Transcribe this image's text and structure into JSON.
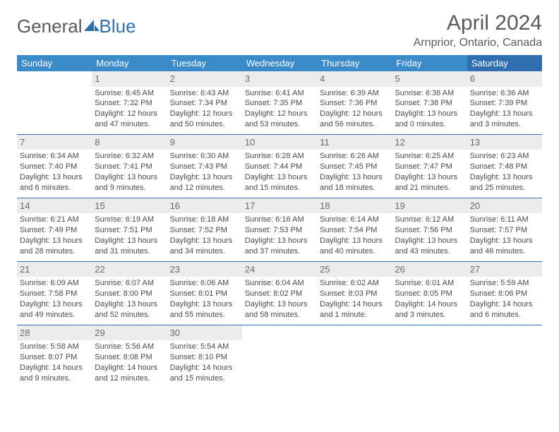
{
  "logo": {
    "word1": "General",
    "word2": "Blue"
  },
  "title": "April 2024",
  "location": "Arnprior, Ontario, Canada",
  "colors": {
    "header_bg": "#3b8bc9",
    "header_sat_bg": "#2f6fb0",
    "header_text": "#ffffff",
    "daynum_bg": "#ececec",
    "border": "#2f6fb0",
    "body_text": "#4a4a4a",
    "title_text": "#5a5a5a"
  },
  "typography": {
    "title_fontsize": 30,
    "location_fontsize": 16,
    "dayheader_fontsize": 13,
    "cell_fontsize": 11
  },
  "day_headers": [
    "Sunday",
    "Monday",
    "Tuesday",
    "Wednesday",
    "Thursday",
    "Friday",
    "Saturday"
  ],
  "weeks": [
    [
      null,
      {
        "n": "1",
        "sr": "Sunrise: 6:45 AM",
        "ss": "Sunset: 7:32 PM",
        "dl": "Daylight: 12 hours and 47 minutes."
      },
      {
        "n": "2",
        "sr": "Sunrise: 6:43 AM",
        "ss": "Sunset: 7:34 PM",
        "dl": "Daylight: 12 hours and 50 minutes."
      },
      {
        "n": "3",
        "sr": "Sunrise: 6:41 AM",
        "ss": "Sunset: 7:35 PM",
        "dl": "Daylight: 12 hours and 53 minutes."
      },
      {
        "n": "4",
        "sr": "Sunrise: 6:39 AM",
        "ss": "Sunset: 7:36 PM",
        "dl": "Daylight: 12 hours and 56 minutes."
      },
      {
        "n": "5",
        "sr": "Sunrise: 6:38 AM",
        "ss": "Sunset: 7:38 PM",
        "dl": "Daylight: 13 hours and 0 minutes."
      },
      {
        "n": "6",
        "sr": "Sunrise: 6:36 AM",
        "ss": "Sunset: 7:39 PM",
        "dl": "Daylight: 13 hours and 3 minutes."
      }
    ],
    [
      {
        "n": "7",
        "sr": "Sunrise: 6:34 AM",
        "ss": "Sunset: 7:40 PM",
        "dl": "Daylight: 13 hours and 6 minutes."
      },
      {
        "n": "8",
        "sr": "Sunrise: 6:32 AM",
        "ss": "Sunset: 7:41 PM",
        "dl": "Daylight: 13 hours and 9 minutes."
      },
      {
        "n": "9",
        "sr": "Sunrise: 6:30 AM",
        "ss": "Sunset: 7:43 PM",
        "dl": "Daylight: 13 hours and 12 minutes."
      },
      {
        "n": "10",
        "sr": "Sunrise: 6:28 AM",
        "ss": "Sunset: 7:44 PM",
        "dl": "Daylight: 13 hours and 15 minutes."
      },
      {
        "n": "11",
        "sr": "Sunrise: 6:26 AM",
        "ss": "Sunset: 7:45 PM",
        "dl": "Daylight: 13 hours and 18 minutes."
      },
      {
        "n": "12",
        "sr": "Sunrise: 6:25 AM",
        "ss": "Sunset: 7:47 PM",
        "dl": "Daylight: 13 hours and 21 minutes."
      },
      {
        "n": "13",
        "sr": "Sunrise: 6:23 AM",
        "ss": "Sunset: 7:48 PM",
        "dl": "Daylight: 13 hours and 25 minutes."
      }
    ],
    [
      {
        "n": "14",
        "sr": "Sunrise: 6:21 AM",
        "ss": "Sunset: 7:49 PM",
        "dl": "Daylight: 13 hours and 28 minutes."
      },
      {
        "n": "15",
        "sr": "Sunrise: 6:19 AM",
        "ss": "Sunset: 7:51 PM",
        "dl": "Daylight: 13 hours and 31 minutes."
      },
      {
        "n": "16",
        "sr": "Sunrise: 6:18 AM",
        "ss": "Sunset: 7:52 PM",
        "dl": "Daylight: 13 hours and 34 minutes."
      },
      {
        "n": "17",
        "sr": "Sunrise: 6:16 AM",
        "ss": "Sunset: 7:53 PM",
        "dl": "Daylight: 13 hours and 37 minutes."
      },
      {
        "n": "18",
        "sr": "Sunrise: 6:14 AM",
        "ss": "Sunset: 7:54 PM",
        "dl": "Daylight: 13 hours and 40 minutes."
      },
      {
        "n": "19",
        "sr": "Sunrise: 6:12 AM",
        "ss": "Sunset: 7:56 PM",
        "dl": "Daylight: 13 hours and 43 minutes."
      },
      {
        "n": "20",
        "sr": "Sunrise: 6:11 AM",
        "ss": "Sunset: 7:57 PM",
        "dl": "Daylight: 13 hours and 46 minutes."
      }
    ],
    [
      {
        "n": "21",
        "sr": "Sunrise: 6:09 AM",
        "ss": "Sunset: 7:58 PM",
        "dl": "Daylight: 13 hours and 49 minutes."
      },
      {
        "n": "22",
        "sr": "Sunrise: 6:07 AM",
        "ss": "Sunset: 8:00 PM",
        "dl": "Daylight: 13 hours and 52 minutes."
      },
      {
        "n": "23",
        "sr": "Sunrise: 6:06 AM",
        "ss": "Sunset: 8:01 PM",
        "dl": "Daylight: 13 hours and 55 minutes."
      },
      {
        "n": "24",
        "sr": "Sunrise: 6:04 AM",
        "ss": "Sunset: 8:02 PM",
        "dl": "Daylight: 13 hours and 58 minutes."
      },
      {
        "n": "25",
        "sr": "Sunrise: 6:02 AM",
        "ss": "Sunset: 8:03 PM",
        "dl": "Daylight: 14 hours and 1 minute."
      },
      {
        "n": "26",
        "sr": "Sunrise: 6:01 AM",
        "ss": "Sunset: 8:05 PM",
        "dl": "Daylight: 14 hours and 3 minutes."
      },
      {
        "n": "27",
        "sr": "Sunrise: 5:59 AM",
        "ss": "Sunset: 8:06 PM",
        "dl": "Daylight: 14 hours and 6 minutes."
      }
    ],
    [
      {
        "n": "28",
        "sr": "Sunrise: 5:58 AM",
        "ss": "Sunset: 8:07 PM",
        "dl": "Daylight: 14 hours and 9 minutes."
      },
      {
        "n": "29",
        "sr": "Sunrise: 5:56 AM",
        "ss": "Sunset: 8:08 PM",
        "dl": "Daylight: 14 hours and 12 minutes."
      },
      {
        "n": "30",
        "sr": "Sunrise: 5:54 AM",
        "ss": "Sunset: 8:10 PM",
        "dl": "Daylight: 14 hours and 15 minutes."
      },
      null,
      null,
      null,
      null
    ]
  ]
}
